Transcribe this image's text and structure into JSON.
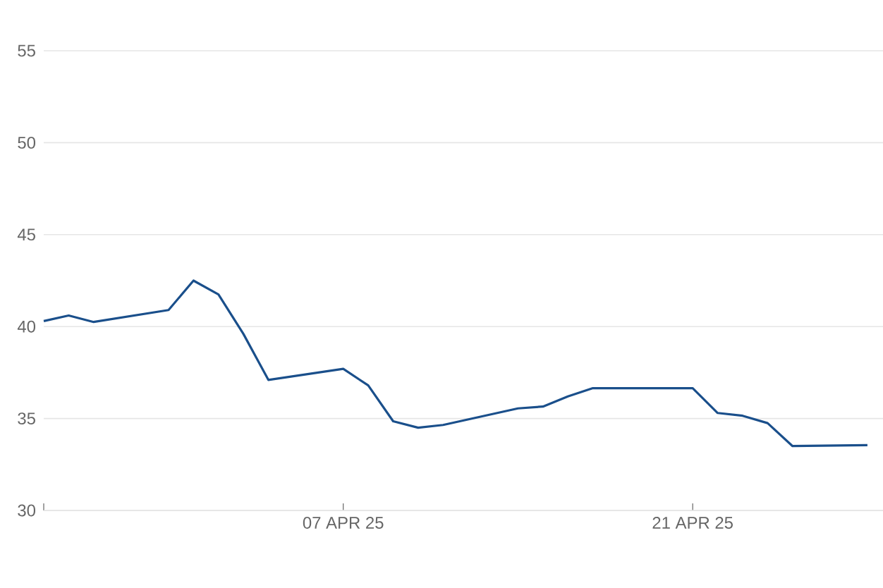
{
  "chart_data": {
    "type": "line",
    "x": [
      "2025-03-26",
      "2025-03-27",
      "2025-03-28",
      "2025-03-31",
      "2025-04-01",
      "2025-04-02",
      "2025-04-03",
      "2025-04-04",
      "2025-04-07",
      "2025-04-08",
      "2025-04-09",
      "2025-04-10",
      "2025-04-11",
      "2025-04-14",
      "2025-04-15",
      "2025-04-16",
      "2025-04-17",
      "2025-04-21",
      "2025-04-22",
      "2025-04-23",
      "2025-04-24",
      "2025-04-25",
      "2025-04-28"
    ],
    "values": [
      40.3,
      40.6,
      40.25,
      40.9,
      42.5,
      41.75,
      39.6,
      37.1,
      37.7,
      36.8,
      34.85,
      34.5,
      34.65,
      35.55,
      35.65,
      36.2,
      36.65,
      36.65,
      35.3,
      35.15,
      34.75,
      33.5,
      33.55
    ],
    "color": "#1a4f8b",
    "xlim": [
      "2025-03-26",
      "2025-04-28T15:00"
    ],
    "xticks": [
      {
        "value": "2025-03-26",
        "label": null
      },
      {
        "value": "2025-04-07",
        "label": "07 APR 25"
      },
      {
        "value": "2025-04-21",
        "label": "21 APR 25"
      }
    ],
    "ylim": [
      30,
      55
    ],
    "yticks": [
      30,
      35,
      40,
      45,
      50,
      55
    ],
    "grid": "y",
    "marker": "none",
    "line_style": "solid"
  }
}
